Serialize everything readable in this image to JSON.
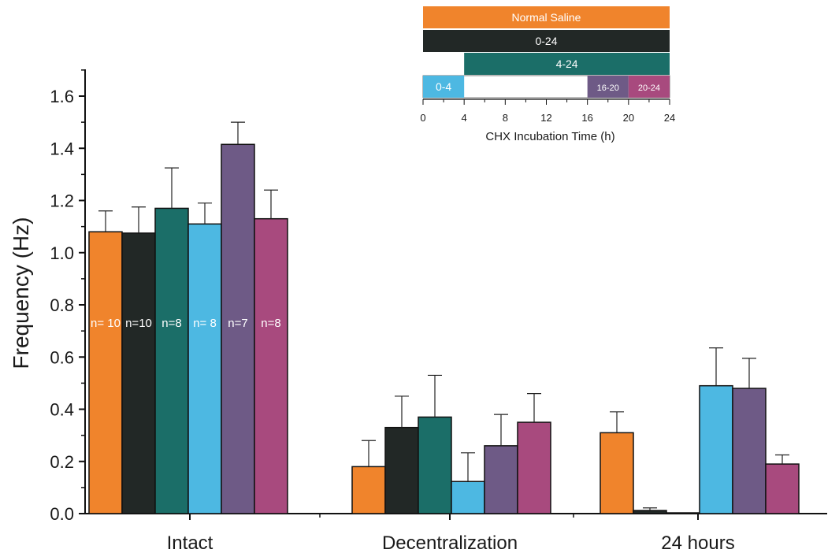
{
  "chart_data": {
    "type": "bar",
    "ylabel": "Frequency (Hz)",
    "xlabel": "",
    "ylim": [
      0,
      1.7
    ],
    "yticks": [
      0.0,
      0.2,
      0.4,
      0.6,
      0.8,
      1.0,
      1.2,
      1.4,
      1.6
    ],
    "ytick_labels": [
      "0.0",
      "0.2",
      "0.4",
      "0.6",
      "0.8",
      "1.0",
      "1.2",
      "1.4",
      "1.6"
    ],
    "categories": [
      "Intact",
      "Decentralization",
      "24 hours"
    ],
    "error_bars": "upper",
    "series": [
      {
        "key": "normal_saline",
        "color": "#f0842c",
        "values": [
          1.08,
          0.18,
          0.31
        ],
        "errors": [
          0.08,
          0.1,
          0.08
        ]
      },
      {
        "key": "chx_0_24",
        "color": "#222826",
        "values": [
          1.075,
          0.33,
          0.012
        ],
        "errors": [
          0.1,
          0.12,
          0.01
        ]
      },
      {
        "key": "chx_4_24",
        "color": "#1b6e68",
        "values": [
          1.17,
          0.37,
          0.003
        ],
        "errors": [
          0.155,
          0.16,
          0.0
        ]
      },
      {
        "key": "chx_0_4",
        "color": "#4db8e2",
        "values": [
          1.11,
          0.123,
          0.49
        ],
        "errors": [
          0.08,
          0.11,
          0.145
        ]
      },
      {
        "key": "chx_16_20",
        "color": "#6e5a86",
        "values": [
          1.415,
          0.26,
          0.48
        ],
        "errors": [
          0.085,
          0.12,
          0.115
        ]
      },
      {
        "key": "chx_20_24",
        "color": "#a84a7e",
        "values": [
          1.13,
          0.35,
          0.19
        ],
        "errors": [
          0.11,
          0.11,
          0.035
        ]
      }
    ],
    "n_labels": [
      "n= 10",
      "n=10",
      "n=8",
      "n= 8",
      "n=7",
      "n=8"
    ],
    "legend": {
      "placement": "top-right",
      "axis_title": "CHX Incubation Time (h)",
      "axis_range": [
        0,
        24
      ],
      "ticks": [
        0,
        4,
        8,
        12,
        16,
        20,
        24
      ],
      "bars": [
        {
          "label": "Normal Saline",
          "start": 0,
          "end": 24,
          "row": 0,
          "color": "#f0842c"
        },
        {
          "label": "0-24",
          "start": 0,
          "end": 24,
          "row": 1,
          "color": "#222826"
        },
        {
          "label": "4-24",
          "start": 4,
          "end": 24,
          "row": 2,
          "color": "#1b6e68"
        },
        {
          "label": "0-4",
          "start": 0,
          "end": 4,
          "row": 3,
          "color": "#4db8e2"
        },
        {
          "label": "16-20",
          "start": 16,
          "end": 20,
          "row": 3,
          "color": "#6e5a86"
        },
        {
          "label": "20-24",
          "start": 20,
          "end": 24,
          "row": 3,
          "color": "#a84a7e"
        }
      ]
    }
  }
}
